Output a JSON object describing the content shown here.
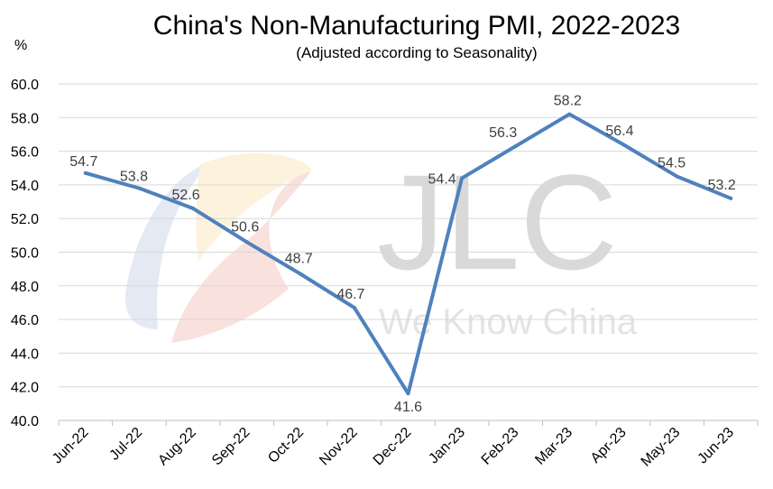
{
  "chart_data": {
    "type": "line",
    "title": "China's Non-Manufacturing PMI, 2022-2023",
    "subtitle": "(Adjusted according to Seasonality)",
    "ylabel": "%",
    "xlabel": "",
    "categories": [
      "Jun-22",
      "Jul-22",
      "Aug-22",
      "Sep-22",
      "Oct-22",
      "Nov-22",
      "Dec-22",
      "Jan-23",
      "Feb-23",
      "Mar-23",
      "Apr-23",
      "May-23",
      "Jun-23"
    ],
    "values": [
      54.7,
      53.8,
      52.6,
      50.6,
      48.7,
      46.7,
      41.6,
      54.4,
      56.3,
      58.2,
      56.4,
      54.5,
      53.2
    ],
    "data_labels": [
      "54.7",
      "53.8",
      "52.6",
      "50.6",
      "48.7",
      "46.7",
      "41.6",
      "54.4",
      "56.3",
      "58.2",
      "56.4",
      "54.5",
      "53.2"
    ],
    "ylim": [
      40,
      60
    ],
    "yticks": [
      "40.0",
      "42.0",
      "44.0",
      "46.0",
      "48.0",
      "50.0",
      "52.0",
      "54.0",
      "56.0",
      "58.0",
      "60.0"
    ],
    "grid": true,
    "legend": "none",
    "line_color": "#4f81bd",
    "watermark": {
      "logo": "JLC",
      "tagline": "We Know China"
    }
  }
}
